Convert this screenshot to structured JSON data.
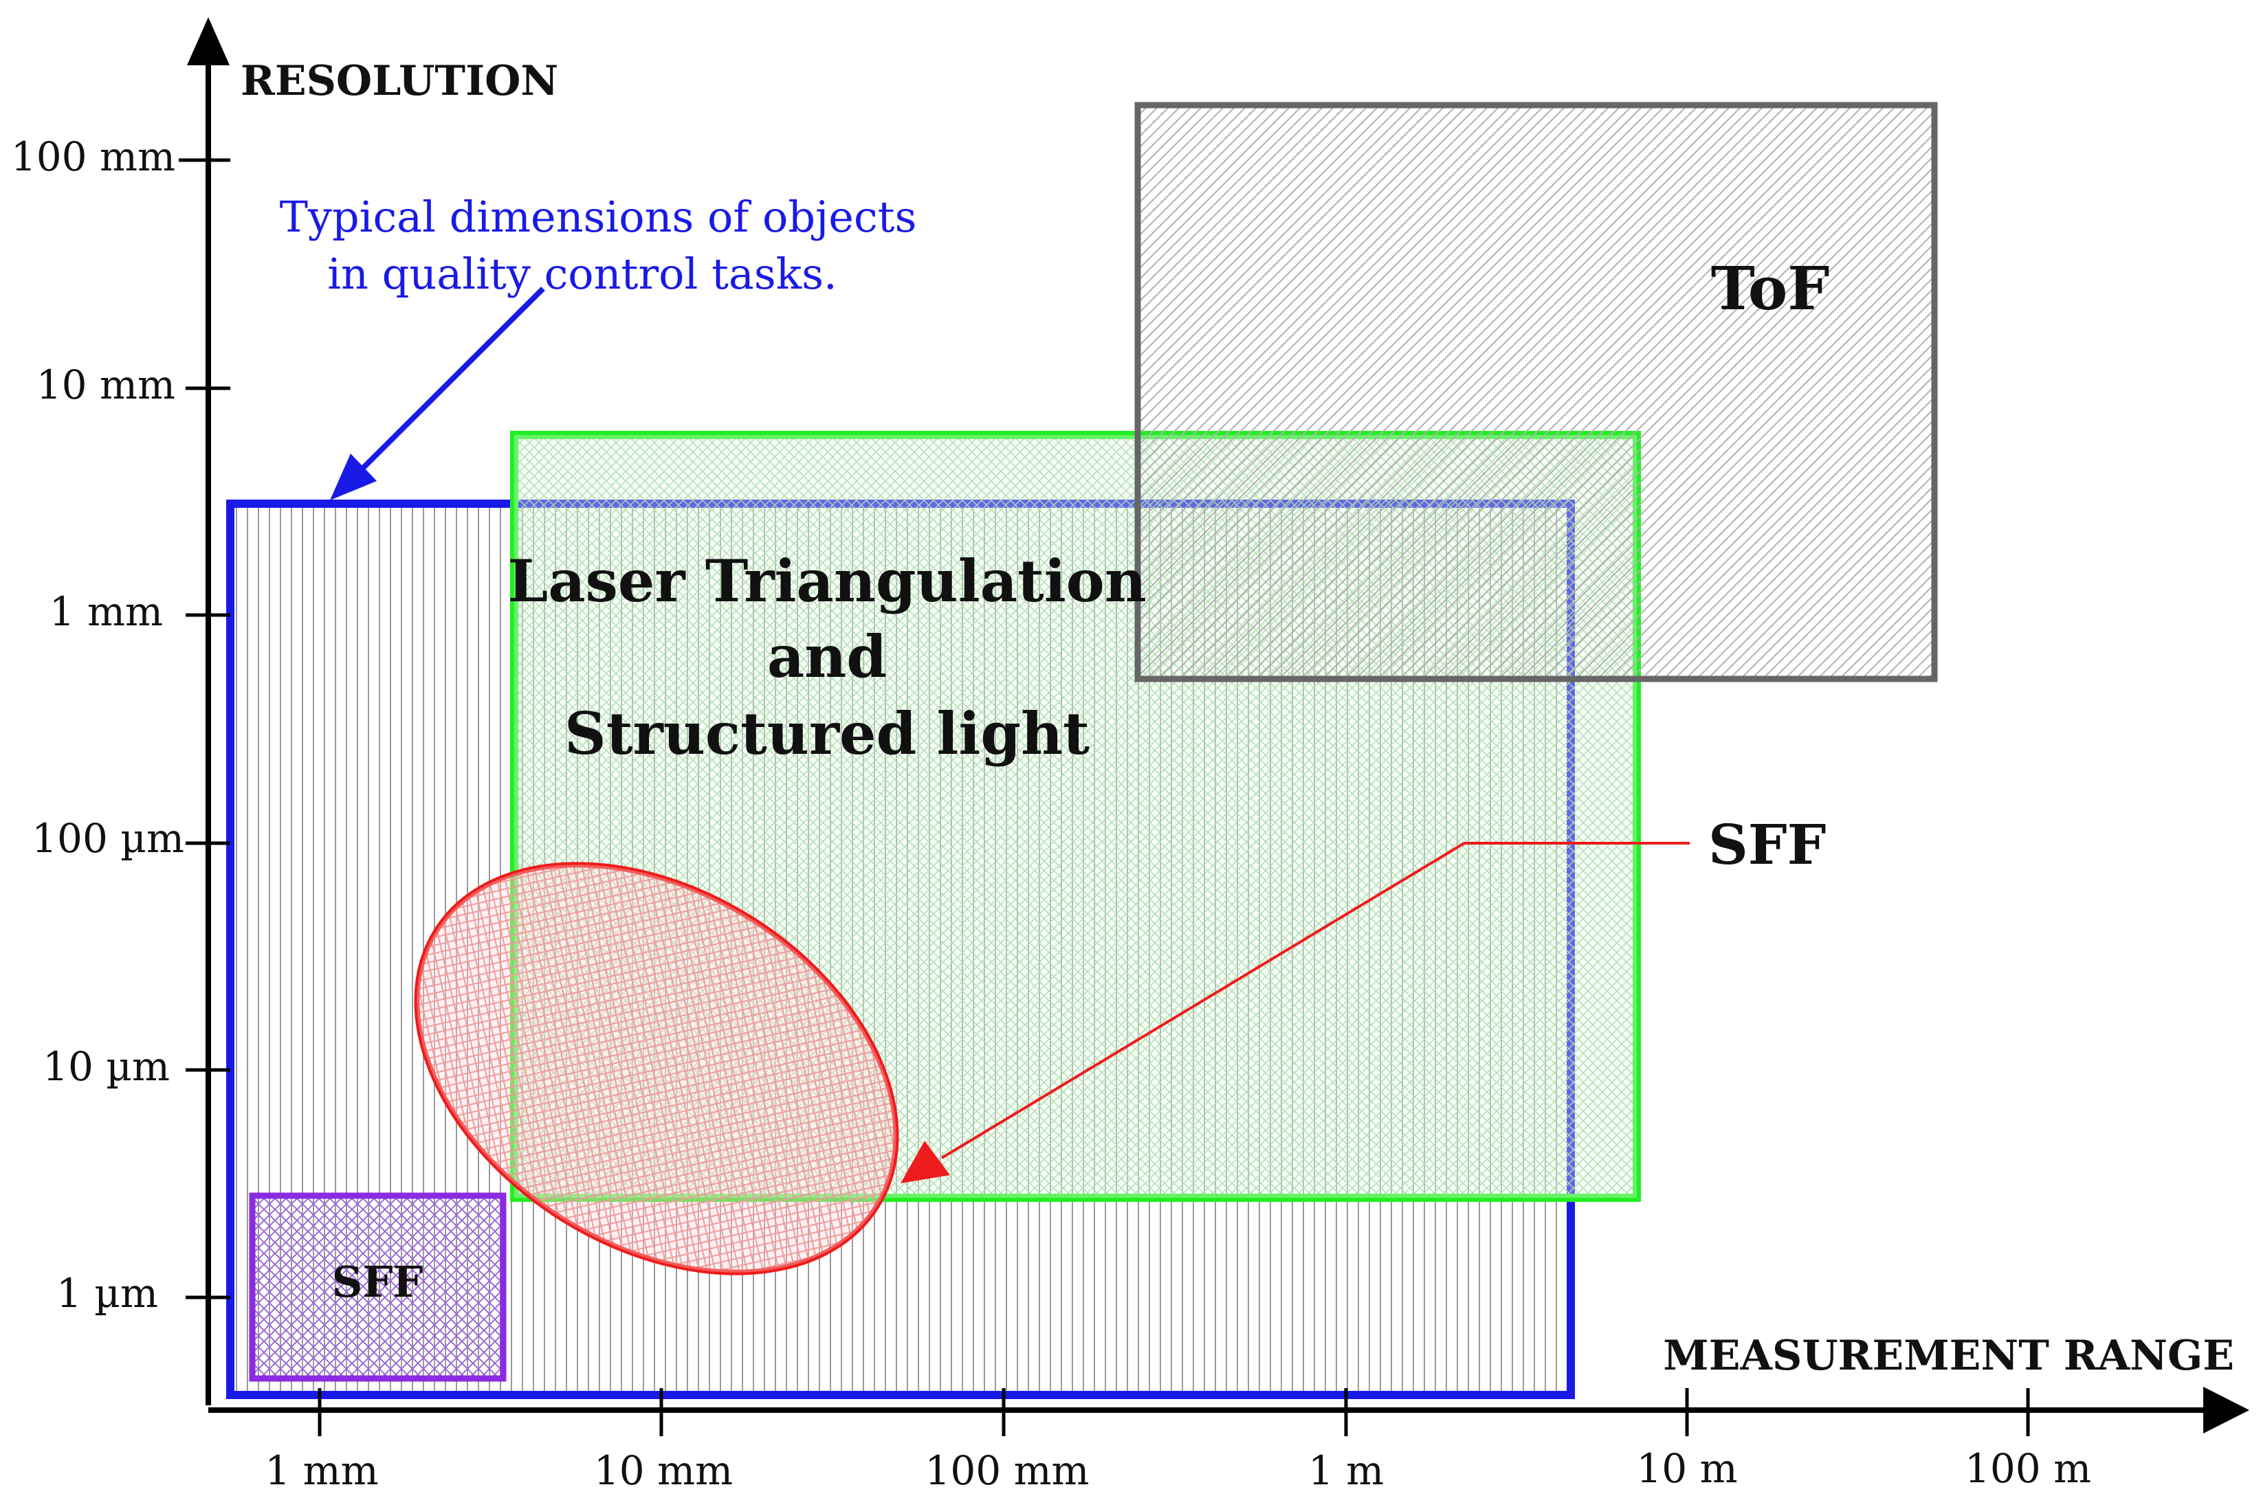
{
  "axes": {
    "y_title": "RESOLUTION",
    "x_title": "MEASUREMENT RANGE",
    "y_ticks": [
      "100 mm",
      "10 mm",
      "1 mm",
      "100 µm",
      "10 µm",
      "1 µm"
    ],
    "x_ticks": [
      "1 mm",
      "10 mm",
      "100 mm",
      "1 m",
      "10 m",
      "100 m"
    ]
  },
  "regions": {
    "tof": {
      "label": "ToF",
      "color": "#666666"
    },
    "laser": {
      "label_lines": [
        "Laser Triangulation",
        "and",
        "Structured light"
      ],
      "color": "#22ee22"
    },
    "sff_small": {
      "label": "SFF",
      "color": "#8a2be2"
    },
    "sff_ellipse": {
      "label": "SFF",
      "color": "#ee1c1c"
    },
    "typical": {
      "color": "#1a1ae6"
    }
  },
  "annotation": {
    "lines": [
      "Typical dimensions of objects",
      "in quality control tasks."
    ],
    "color": "#1a1ae6"
  }
}
